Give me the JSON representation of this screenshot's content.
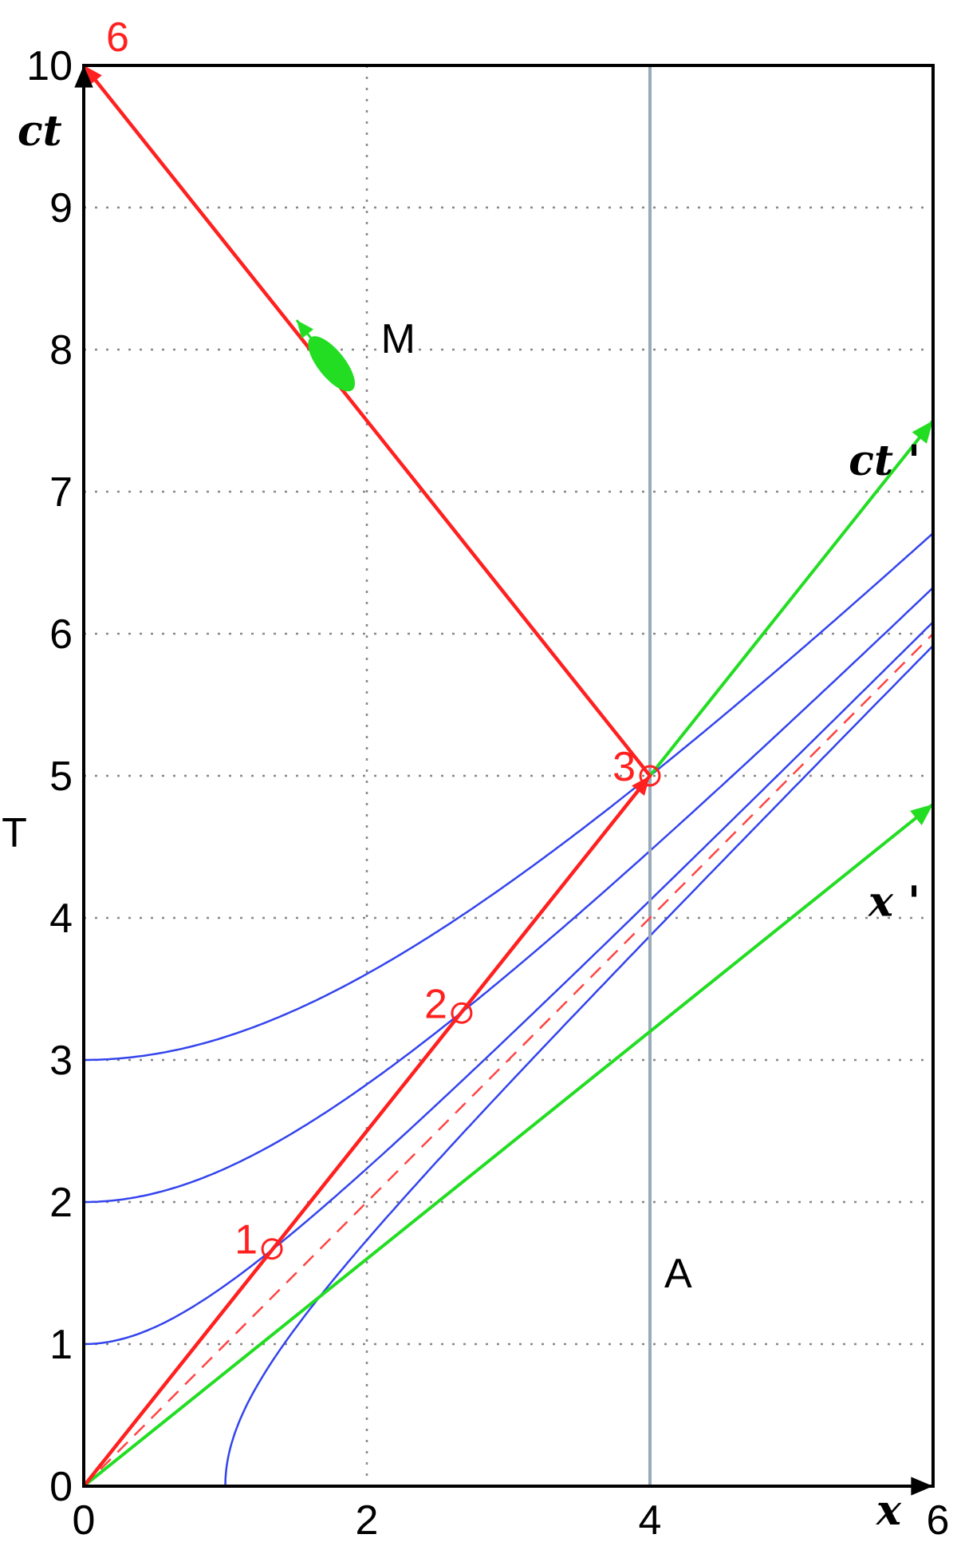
{
  "chart_data": {
    "type": "line",
    "xlim": [
      0,
      6
    ],
    "ylim": [
      0,
      10
    ],
    "xticks": [
      0,
      2,
      4,
      6
    ],
    "yticks": [
      0,
      1,
      2,
      3,
      4,
      5,
      6,
      7,
      8,
      9,
      10
    ],
    "grid": true,
    "ylabel": "T",
    "axis_labels": {
      "x": "x",
      "ct": "ct",
      "x_prime": "x '",
      "ct_prime": "ct '"
    },
    "hyperbolas": {
      "color": "#3344ee",
      "timelike_T": [
        1,
        2,
        3
      ],
      "spacelike_X": [
        1
      ]
    },
    "light_line": {
      "color": "#ff4444",
      "style": "dashed",
      "from": [
        0,
        0
      ],
      "to": [
        6,
        6
      ]
    },
    "primed_axes": {
      "color": "#22dd22",
      "ct_prime": {
        "from": [
          0,
          0
        ],
        "to": [
          6,
          7.5
        ]
      },
      "x_prime": {
        "from": [
          0,
          0
        ],
        "to": [
          6,
          4.8
        ]
      }
    },
    "worldline_A": {
      "color": "#99aabb",
      "x": 4,
      "label": "A"
    },
    "red_path": {
      "color": "#ff2020",
      "points": [
        [
          0,
          0
        ],
        [
          4,
          5
        ],
        [
          0,
          10
        ]
      ]
    },
    "points": [
      {
        "label": "1",
        "x": 1.33,
        "y": 1.67
      },
      {
        "label": "2",
        "x": 2.67,
        "y": 3.33
      },
      {
        "label": "3",
        "x": 4.0,
        "y": 5.0
      },
      {
        "label": "6",
        "x": 0.0,
        "y": 10.0
      }
    ],
    "marker_M": {
      "label": "M",
      "x": 1.75,
      "y": 7.9,
      "color": "#22dd22"
    }
  }
}
